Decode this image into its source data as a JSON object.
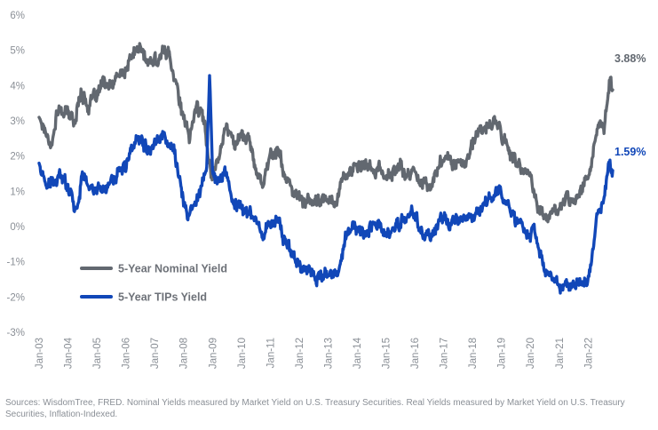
{
  "chart_data": {
    "type": "line",
    "title": "",
    "xlabel": "",
    "ylabel": "",
    "ylim": [
      -3,
      6
    ],
    "yticks": [
      "-3%",
      "-2%",
      "-1%",
      "0%",
      "1%",
      "2%",
      "3%",
      "4%",
      "5%",
      "6%"
    ],
    "xticks": [
      "Jan-03",
      "Jan-04",
      "Jan-05",
      "Jan-06",
      "Jan-07",
      "Jan-08",
      "Jan-09",
      "Jan-10",
      "Jan-11",
      "Jan-12",
      "Jan-13",
      "Jan-14",
      "Jan-15",
      "Jan-16",
      "Jan-17",
      "Jan-18",
      "Jan-19",
      "Jan-20",
      "Jan-21",
      "Jan-22"
    ],
    "grid": false,
    "legend_position": "bottom-left",
    "series": [
      {
        "name": "5-Year Nominal Yield",
        "color": "#626870",
        "end_label": "3.88%",
        "points": [
          [
            2003.0,
            3.1
          ],
          [
            2003.25,
            2.7
          ],
          [
            2003.45,
            2.3
          ],
          [
            2003.6,
            3.2
          ],
          [
            2003.8,
            3.3
          ],
          [
            2004.0,
            3.2
          ],
          [
            2004.25,
            3.0
          ],
          [
            2004.45,
            3.9
          ],
          [
            2004.7,
            3.4
          ],
          [
            2005.0,
            3.7
          ],
          [
            2005.25,
            4.1
          ],
          [
            2005.5,
            3.9
          ],
          [
            2005.75,
            4.3
          ],
          [
            2006.0,
            4.4
          ],
          [
            2006.25,
            4.9
          ],
          [
            2006.5,
            5.1
          ],
          [
            2006.75,
            4.6
          ],
          [
            2007.0,
            4.7
          ],
          [
            2007.45,
            5.0
          ],
          [
            2007.7,
            4.3
          ],
          [
            2008.0,
            3.0
          ],
          [
            2008.2,
            2.5
          ],
          [
            2008.45,
            3.5
          ],
          [
            2008.7,
            3.0
          ],
          [
            2008.95,
            1.5
          ],
          [
            2009.1,
            1.7
          ],
          [
            2009.45,
            2.8
          ],
          [
            2009.8,
            2.4
          ],
          [
            2010.0,
            2.6
          ],
          [
            2010.25,
            2.5
          ],
          [
            2010.5,
            1.6
          ],
          [
            2010.75,
            1.3
          ],
          [
            2011.0,
            2.0
          ],
          [
            2011.25,
            2.2
          ],
          [
            2011.5,
            1.5
          ],
          [
            2011.75,
            0.9
          ],
          [
            2012.0,
            0.85
          ],
          [
            2012.5,
            0.65
          ],
          [
            2012.75,
            0.7
          ],
          [
            2013.0,
            0.75
          ],
          [
            2013.3,
            0.8
          ],
          [
            2013.55,
            1.5
          ],
          [
            2013.9,
            1.6
          ],
          [
            2014.25,
            1.7
          ],
          [
            2014.75,
            1.6
          ],
          [
            2015.0,
            1.4
          ],
          [
            2015.5,
            1.7
          ],
          [
            2015.75,
            1.4
          ],
          [
            2016.0,
            1.6
          ],
          [
            2016.25,
            1.3
          ],
          [
            2016.55,
            1.1
          ],
          [
            2016.9,
            1.9
          ],
          [
            2017.25,
            1.9
          ],
          [
            2017.75,
            1.8
          ],
          [
            2018.0,
            2.3
          ],
          [
            2018.25,
            2.7
          ],
          [
            2018.85,
            3.0
          ],
          [
            2019.0,
            2.6
          ],
          [
            2019.5,
            1.8
          ],
          [
            2019.75,
            1.5
          ],
          [
            2020.0,
            1.6
          ],
          [
            2020.2,
            0.6
          ],
          [
            2020.5,
            0.3
          ],
          [
            2020.75,
            0.35
          ],
          [
            2021.0,
            0.45
          ],
          [
            2021.2,
            0.85
          ],
          [
            2021.5,
            0.8
          ],
          [
            2021.75,
            1.1
          ],
          [
            2021.95,
            1.3
          ],
          [
            2022.15,
            2.0
          ],
          [
            2022.4,
            2.9
          ],
          [
            2022.55,
            2.7
          ],
          [
            2022.75,
            4.3
          ],
          [
            2022.85,
            3.88
          ]
        ]
      },
      {
        "name": "5-Year TIPs Yield",
        "color": "#1147b8",
        "end_label": "1.59%",
        "points": [
          [
            2003.0,
            1.8
          ],
          [
            2003.25,
            1.1
          ],
          [
            2003.5,
            1.2
          ],
          [
            2003.75,
            1.4
          ],
          [
            2004.0,
            1.2
          ],
          [
            2004.3,
            0.5
          ],
          [
            2004.5,
            1.5
          ],
          [
            2004.75,
            1.1
          ],
          [
            2005.0,
            1.0
          ],
          [
            2005.25,
            1.1
          ],
          [
            2005.5,
            1.3
          ],
          [
            2005.75,
            1.5
          ],
          [
            2006.0,
            1.7
          ],
          [
            2006.25,
            2.3
          ],
          [
            2006.5,
            2.6
          ],
          [
            2006.75,
            2.3
          ],
          [
            2007.0,
            2.4
          ],
          [
            2007.35,
            2.6
          ],
          [
            2007.7,
            2.1
          ],
          [
            2008.0,
            0.7
          ],
          [
            2008.15,
            0.1
          ],
          [
            2008.3,
            0.6
          ],
          [
            2008.6,
            1.1
          ],
          [
            2008.8,
            1.7
          ],
          [
            2008.9,
            4.2
          ],
          [
            2009.0,
            1.5
          ],
          [
            2009.2,
            1.2
          ],
          [
            2009.45,
            1.6
          ],
          [
            2009.75,
            0.6
          ],
          [
            2010.0,
            0.6
          ],
          [
            2010.25,
            0.4
          ],
          [
            2010.5,
            0.2
          ],
          [
            2010.75,
            -0.2
          ],
          [
            2011.0,
            0.1
          ],
          [
            2011.25,
            0.2
          ],
          [
            2011.5,
            -0.4
          ],
          [
            2011.75,
            -0.7
          ],
          [
            2012.0,
            -1.1
          ],
          [
            2012.25,
            -1.15
          ],
          [
            2012.5,
            -1.4
          ],
          [
            2012.75,
            -1.45
          ],
          [
            2013.0,
            -1.4
          ],
          [
            2013.35,
            -1.4
          ],
          [
            2013.6,
            -0.3
          ],
          [
            2013.9,
            0.0
          ],
          [
            2014.25,
            -0.2
          ],
          [
            2014.5,
            0.1
          ],
          [
            2014.75,
            0.1
          ],
          [
            2015.0,
            -0.3
          ],
          [
            2015.5,
            0.1
          ],
          [
            2015.75,
            0.3
          ],
          [
            2016.0,
            0.4
          ],
          [
            2016.25,
            -0.2
          ],
          [
            2016.55,
            -0.3
          ],
          [
            2016.9,
            0.2
          ],
          [
            2017.25,
            0.1
          ],
          [
            2017.75,
            0.2
          ],
          [
            2018.0,
            0.3
          ],
          [
            2018.5,
            0.7
          ],
          [
            2018.85,
            1.05
          ],
          [
            2019.0,
            0.9
          ],
          [
            2019.5,
            0.2
          ],
          [
            2019.75,
            0.0
          ],
          [
            2020.0,
            -0.2
          ],
          [
            2020.15,
            -0.1
          ],
          [
            2020.25,
            -0.5
          ],
          [
            2020.45,
            -1.2
          ],
          [
            2020.75,
            -1.5
          ],
          [
            2021.0,
            -1.7
          ],
          [
            2021.25,
            -1.7
          ],
          [
            2021.5,
            -1.75
          ],
          [
            2021.75,
            -1.7
          ],
          [
            2021.95,
            -1.6
          ],
          [
            2022.1,
            -1.0
          ],
          [
            2022.3,
            0.1
          ],
          [
            2022.5,
            0.7
          ],
          [
            2022.7,
            1.7
          ],
          [
            2022.85,
            1.59
          ]
        ]
      }
    ]
  },
  "source_note": "Sources: WisdomTree, FRED. Nominal Yields measured by Market Yield on U.S. Treasury Securities. Real Yields measured by Market Yield on U.S. Treasury Securities, Inflation-Indexed."
}
